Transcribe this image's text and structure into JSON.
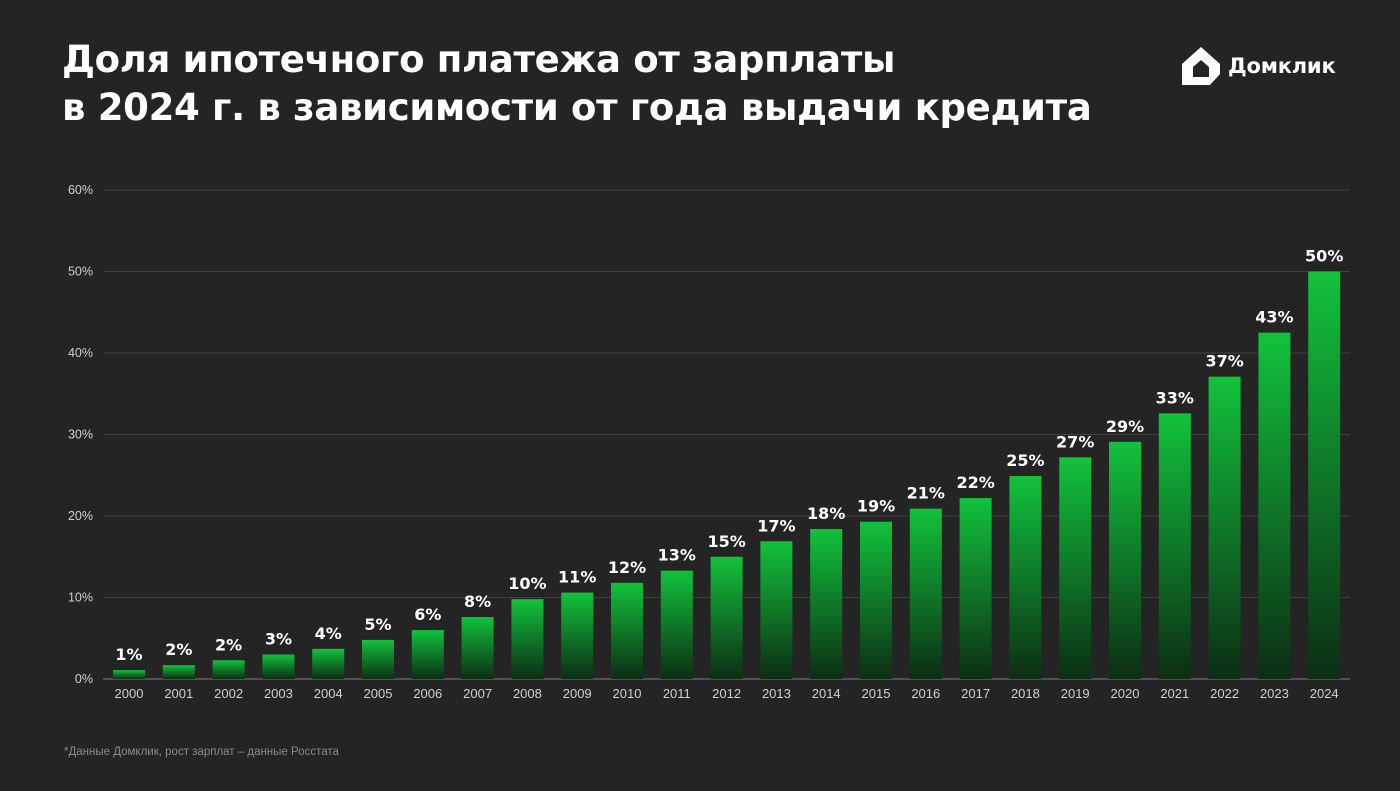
{
  "title": {
    "line1": "Доля ипотечного платежа от зарплаты",
    "line2": "в 2024 г. в зависимости от года выдачи кредита"
  },
  "logo": {
    "text": "Домклик",
    "icon": "house-icon",
    "color": "#ffffff"
  },
  "footnote": "*Данные Домклик, рост зарплат – данные Росстата",
  "colors": {
    "background": "#242424",
    "bar_top": "#12c23c",
    "bar_bottom": "#0c2e14",
    "grid": "#4a4a4a",
    "axis_text": "#d0d0d0",
    "label_text": "#ffffff"
  },
  "chart_data": {
    "type": "bar",
    "title": "",
    "xlabel": "",
    "ylabel": "",
    "ylim": [
      0,
      60
    ],
    "yticks": [
      0,
      10,
      20,
      30,
      40,
      50,
      60
    ],
    "ytick_labels": [
      "0%",
      "10%",
      "20%",
      "30%",
      "40%",
      "50%",
      "60%"
    ],
    "grid": true,
    "legend": "none",
    "categories": [
      "2000",
      "2001",
      "2002",
      "2003",
      "2004",
      "2005",
      "2006",
      "2007",
      "2008",
      "2009",
      "2010",
      "2011",
      "2012",
      "2013",
      "2014",
      "2015",
      "2016",
      "2017",
      "2018",
      "2019",
      "2020",
      "2021",
      "2022",
      "2023",
      "2024"
    ],
    "values": [
      1.1,
      1.7,
      2.3,
      3.0,
      3.7,
      4.8,
      6.0,
      7.6,
      9.8,
      10.6,
      11.8,
      13.3,
      15.0,
      16.9,
      18.4,
      19.3,
      20.9,
      22.2,
      24.9,
      27.2,
      29.1,
      32.6,
      37.1,
      42.5,
      50.0
    ],
    "data_labels": [
      "1%",
      "2%",
      "2%",
      "3%",
      "4%",
      "5%",
      "6%",
      "8%",
      "10%",
      "11%",
      "12%",
      "13%",
      "15%",
      "17%",
      "18%",
      "19%",
      "21%",
      "22%",
      "25%",
      "27%",
      "29%",
      "33%",
      "37%",
      "43%",
      "50%"
    ]
  }
}
